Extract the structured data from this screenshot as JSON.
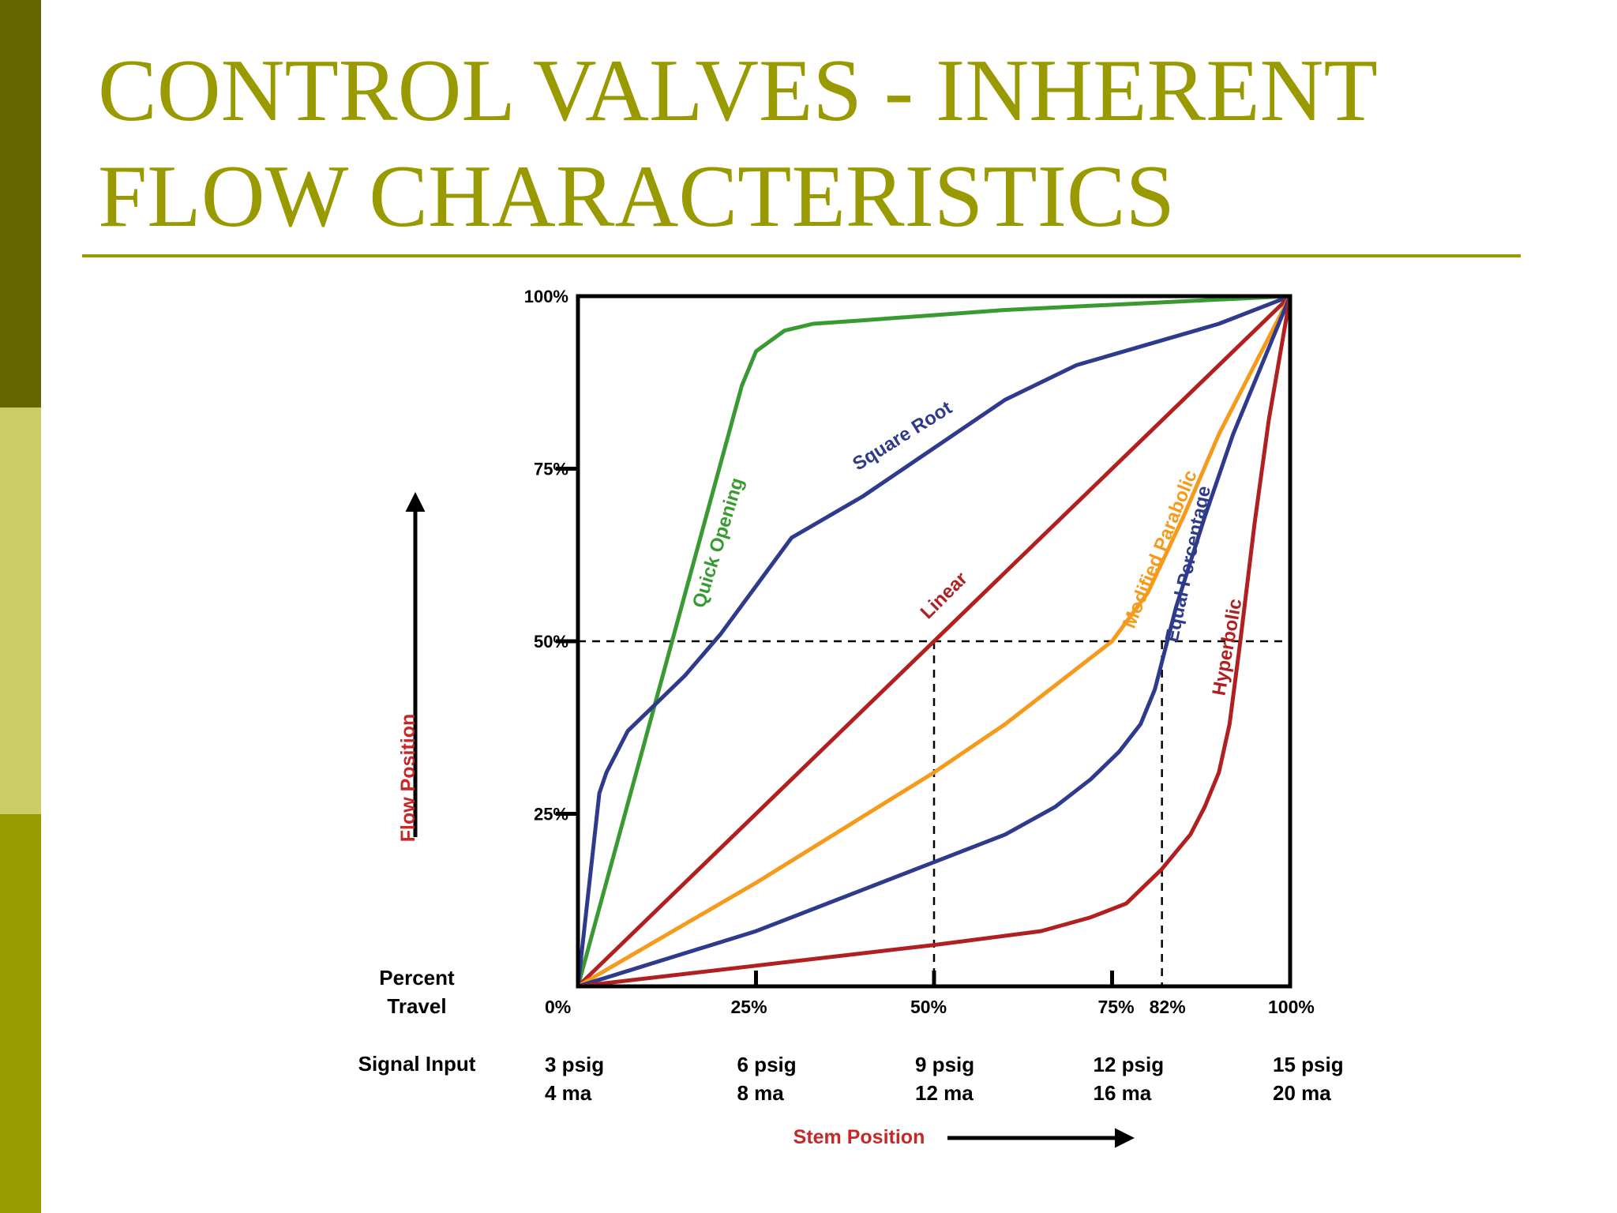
{
  "slide": {
    "title_line1": "CONTROL VALVES - INHERENT",
    "title_line2": "FLOW CHARACTERISTICS",
    "colors": {
      "dark_olive": "#666600",
      "light_olive": "#cccc66",
      "olive": "#999900"
    }
  },
  "chart_data": {
    "type": "line",
    "xlabel": "Stem Position",
    "ylabel": "Flow Position",
    "x_row_title": "Percent Travel",
    "signal_row_title": "Signal Input",
    "xlim": [
      0,
      100
    ],
    "ylim": [
      0,
      100
    ],
    "grid": false,
    "y_ticks": [
      {
        "value": 25,
        "label": "25%"
      },
      {
        "value": 50,
        "label": "50%"
      },
      {
        "value": 75,
        "label": "75%"
      },
      {
        "value": 100,
        "label": "100%"
      }
    ],
    "x_ticks": [
      {
        "value": 0,
        "label": "0%",
        "signal": "3 psig",
        "current": "4 ma"
      },
      {
        "value": 25,
        "label": "25%",
        "signal": "6 psig",
        "current": "8 ma"
      },
      {
        "value": 50,
        "label": "50%",
        "signal": "9 psig",
        "current": "12 ma"
      },
      {
        "value": 75,
        "label": "75%",
        "signal": "12 psig",
        "current": "16 ma"
      },
      {
        "value": 82,
        "label": "82%",
        "signal": "",
        "current": ""
      },
      {
        "value": 100,
        "label": "100%",
        "signal": "15 psig",
        "current": "20 ma"
      }
    ],
    "reference_lines": {
      "horizontal_y": 50,
      "vertical_x": [
        50,
        82
      ]
    },
    "series": [
      {
        "name": "Quick Opening",
        "color": "#3a9a32",
        "x": [
          0,
          23,
          25,
          29,
          33,
          40,
          60,
          80,
          100
        ],
        "y": [
          0,
          87,
          92,
          95,
          96,
          96.5,
          98,
          99,
          100
        ]
      },
      {
        "name": "Square Root",
        "color": "#2e3a8c",
        "x": [
          0,
          3,
          4,
          7,
          10,
          15,
          20,
          25,
          30,
          40,
          50,
          60,
          70,
          80,
          90,
          100
        ],
        "y": [
          0,
          28,
          31,
          37,
          40,
          45,
          51,
          58,
          65,
          71,
          78,
          85,
          90,
          93,
          96,
          100
        ]
      },
      {
        "name": "Linear",
        "color": "#b02020",
        "x": [
          0,
          100
        ],
        "y": [
          0,
          100
        ]
      },
      {
        "name": "Modified Parabolic",
        "color": "#f59a1b",
        "x": [
          0,
          25,
          50,
          60,
          70,
          75,
          80,
          85,
          90,
          100
        ],
        "y": [
          0,
          15,
          31,
          38,
          46,
          50,
          57,
          68,
          80,
          100
        ]
      },
      {
        "name": "Equal Percentage",
        "color": "#2e3a8c",
        "x": [
          0,
          25,
          50,
          60,
          67,
          72,
          76,
          79,
          81,
          82,
          84,
          88,
          92,
          96,
          100
        ],
        "y": [
          0,
          8,
          18,
          22,
          26,
          30,
          34,
          38,
          43,
          47,
          55,
          68,
          80,
          90,
          100
        ]
      },
      {
        "name": "Hyperbolic",
        "color": "#b02020",
        "x": [
          0,
          25,
          50,
          65,
          72,
          77,
          82,
          86,
          88,
          90,
          91.5,
          93,
          95,
          97,
          100
        ],
        "y": [
          0,
          3,
          6,
          8,
          10,
          12,
          17,
          22,
          26,
          31,
          38,
          50,
          67,
          82,
          100
        ]
      }
    ],
    "series_labels": [
      {
        "text": "Quick Opening",
        "x": 20.5,
        "y": 64,
        "angle": -73
      },
      {
        "text": "Square Root",
        "x": 46,
        "y": 79,
        "angle": -32
      },
      {
        "text": "Linear",
        "x": 52,
        "y": 56,
        "angle": -45
      },
      {
        "text": "Modified Parabolic",
        "x": 82.5,
        "y": 63,
        "angle": -68
      },
      {
        "text": "Equal Percentage",
        "x": 86.5,
        "y": 61,
        "angle": -78
      },
      {
        "text": "Hyperbolic",
        "x": 92,
        "y": 49,
        "angle": -80
      }
    ]
  }
}
